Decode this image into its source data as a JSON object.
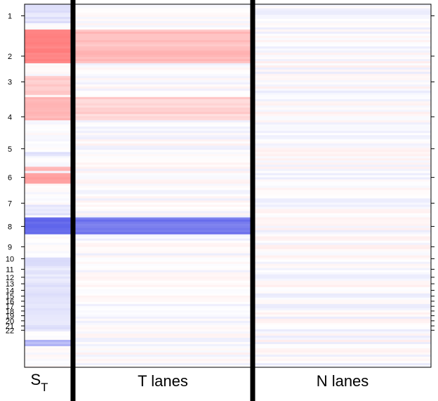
{
  "chart_data": {
    "type": "heatmap",
    "row_labels": [
      "1",
      "2",
      "3",
      "4",
      "5",
      "6",
      "7",
      "8",
      "9",
      "10",
      "11",
      "12",
      "13",
      "14",
      "15",
      "16",
      "17",
      "18",
      "19",
      "20",
      "21",
      "22"
    ],
    "row_tick_positions": [
      0.032,
      0.143,
      0.214,
      0.31,
      0.398,
      0.477,
      0.548,
      0.612,
      0.668,
      0.701,
      0.73,
      0.752,
      0.77,
      0.788,
      0.804,
      0.818,
      0.832,
      0.845,
      0.858,
      0.872,
      0.886,
      0.898
    ],
    "columns": [
      {
        "label_main": "S",
        "label_sub": "T"
      },
      {
        "label_main": "T lanes"
      },
      {
        "label_main": "N lanes"
      }
    ],
    "color_scale": {
      "positive": "#ff6b6b",
      "negative": "#4a50e8",
      "zero": "#ffffff"
    },
    "bands": {
      "ST": [
        {
          "start": 0.0,
          "end": 0.055,
          "value": -0.15
        },
        {
          "start": 0.068,
          "end": 0.16,
          "value": 0.85
        },
        {
          "start": 0.2,
          "end": 0.25,
          "value": 0.35
        },
        {
          "start": 0.255,
          "end": 0.32,
          "value": 0.5
        },
        {
          "start": 0.405,
          "end": 0.42,
          "value": -0.15
        },
        {
          "start": 0.445,
          "end": 0.46,
          "value": 0.45
        },
        {
          "start": 0.465,
          "end": 0.495,
          "value": 0.65
        },
        {
          "start": 0.555,
          "end": 0.58,
          "value": -0.15
        },
        {
          "start": 0.587,
          "end": 0.634,
          "value": -0.85
        },
        {
          "start": 0.7,
          "end": 0.9,
          "value": -0.15
        },
        {
          "start": 0.925,
          "end": 0.94,
          "value": -0.4
        }
      ],
      "T_lanes": [
        {
          "start": 0.068,
          "end": 0.16,
          "value": 0.45
        },
        {
          "start": 0.255,
          "end": 0.32,
          "value": 0.3
        },
        {
          "start": 0.587,
          "end": 0.634,
          "value": -0.75
        }
      ],
      "N_lanes": []
    }
  }
}
